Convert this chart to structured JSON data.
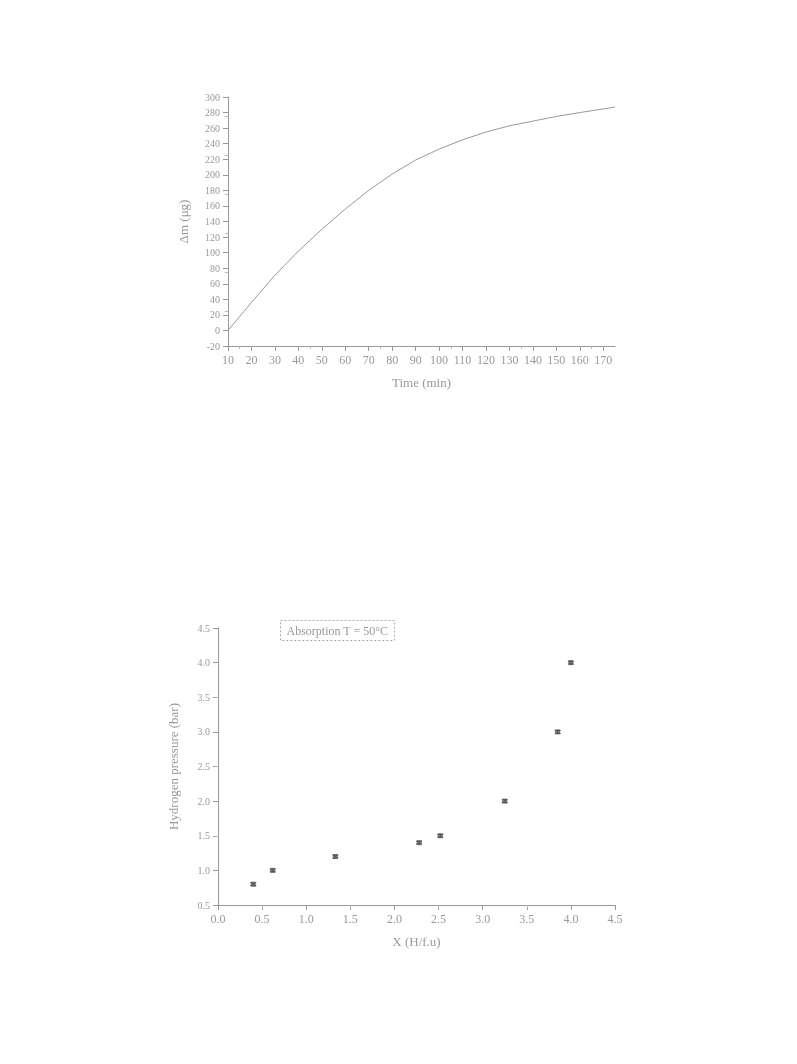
{
  "chart_data": [
    {
      "type": "line",
      "xlabel": "Time (min)",
      "ylabel": "Δm (μg)",
      "color": "#999999",
      "marker": "none",
      "line_style": "solid",
      "grid": false,
      "x": [
        10,
        20,
        30,
        40,
        50,
        60,
        70,
        80,
        90,
        100,
        110,
        120,
        130,
        140,
        150,
        160,
        175
      ],
      "values": [
        0,
        36,
        71,
        102,
        130,
        156,
        180,
        201,
        219,
        233,
        245,
        255,
        263,
        269,
        275,
        280,
        287
      ],
      "xlim": [
        10,
        175
      ],
      "xticks": [
        10,
        20,
        30,
        40,
        50,
        60,
        70,
        80,
        90,
        100,
        110,
        120,
        130,
        140,
        150,
        160,
        170
      ],
      "ylim": [
        -20,
        300
      ],
      "yticks": [
        -20,
        0,
        20,
        40,
        60,
        80,
        100,
        120,
        140,
        160,
        180,
        200,
        220,
        240,
        260,
        280,
        300
      ]
    },
    {
      "type": "scatter",
      "xlabel": "X (H/f.u)",
      "ylabel": "Hydrogen pressure (bar)",
      "color": "#555555",
      "marker": "square",
      "grid": false,
      "annotations": [
        "Absorption T = 50°C"
      ],
      "x": [
        0.4,
        0.62,
        1.33,
        2.28,
        2.52,
        3.25,
        3.85,
        4.0
      ],
      "values": [
        0.8,
        1.0,
        1.2,
        1.4,
        1.5,
        2.0,
        3.0,
        4.0
      ],
      "errors": [
        0.02,
        0.02,
        0.02,
        0.02,
        0.02,
        0.02,
        0.02,
        0.02
      ],
      "xlim": [
        0,
        4.5
      ],
      "xticks": [
        {
          "value": 0,
          "label": "0.0"
        },
        {
          "value": 0.5,
          "label": "0.5"
        },
        {
          "value": 1,
          "label": "1.0"
        },
        {
          "value": 1.5,
          "label": "1.5"
        },
        {
          "value": 2,
          "label": "2.0"
        },
        {
          "value": 2.5,
          "label": "2.5"
        },
        {
          "value": 3,
          "label": "3.0"
        },
        {
          "value": 3.5,
          "label": "3.5"
        },
        {
          "value": 4,
          "label": "4.0"
        },
        {
          "value": 4.5,
          "label": "4.5"
        }
      ],
      "ylim": [
        0.5,
        4.5
      ],
      "yticks": [
        {
          "value": 0.5,
          "label": "0.5"
        },
        {
          "value": 1,
          "label": "1.0"
        },
        {
          "value": 1.5,
          "label": "1.5"
        },
        {
          "value": 2,
          "label": "2.0"
        },
        {
          "value": 2.5,
          "label": "2.5"
        },
        {
          "value": 3,
          "label": "3.0"
        },
        {
          "value": 3.5,
          "label": "3.5"
        },
        {
          "value": 4,
          "label": "4.0"
        },
        {
          "value": 4.5,
          "label": "4.5"
        }
      ]
    }
  ]
}
